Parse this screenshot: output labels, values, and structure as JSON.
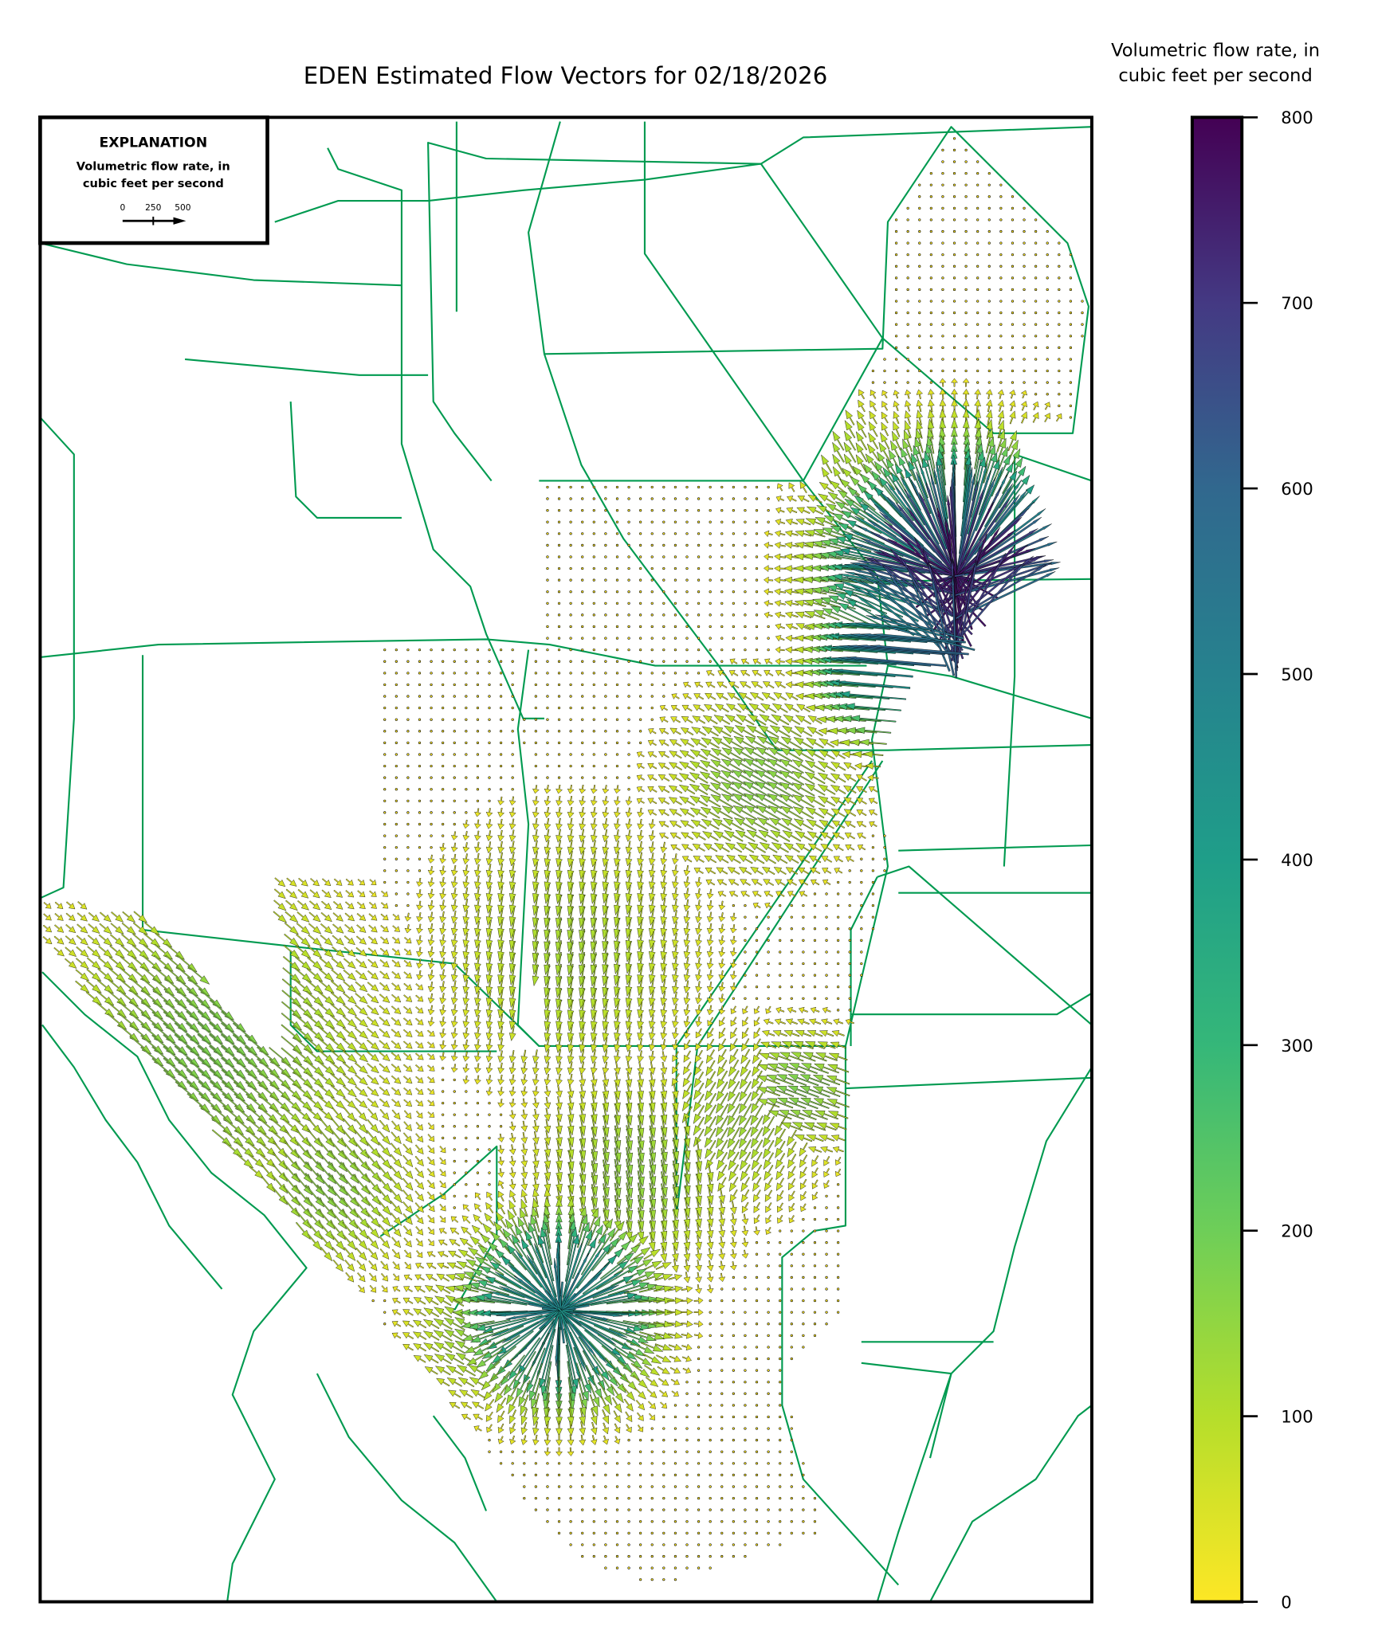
{
  "chart_data": {
    "type": "quiver",
    "title": "EDEN Estimated Flow Vectors for 02/18/2026",
    "colorbar": {
      "label_line1": "Volumetric flow rate, in",
      "label_line2": "cubic feet per second",
      "range": [
        0,
        800
      ],
      "ticks": [
        "0",
        "100",
        "200",
        "300",
        "400",
        "500",
        "600",
        "700",
        "800"
      ],
      "colormap": "viridis (reversed: 0 yellow, 800 purple)",
      "colors": [
        "#fde725",
        "#5ec962",
        "#21918c",
        "#3b528b",
        "#440154"
      ]
    },
    "explanation": {
      "heading": "EXPLANATION",
      "line1": "Volumetric flow rate, in",
      "line2": "cubic feet per second",
      "scale_labels": [
        "0",
        "250",
        "500"
      ]
    },
    "basemap_line_color": "#009a50",
    "axes_ticks": "none"
  }
}
